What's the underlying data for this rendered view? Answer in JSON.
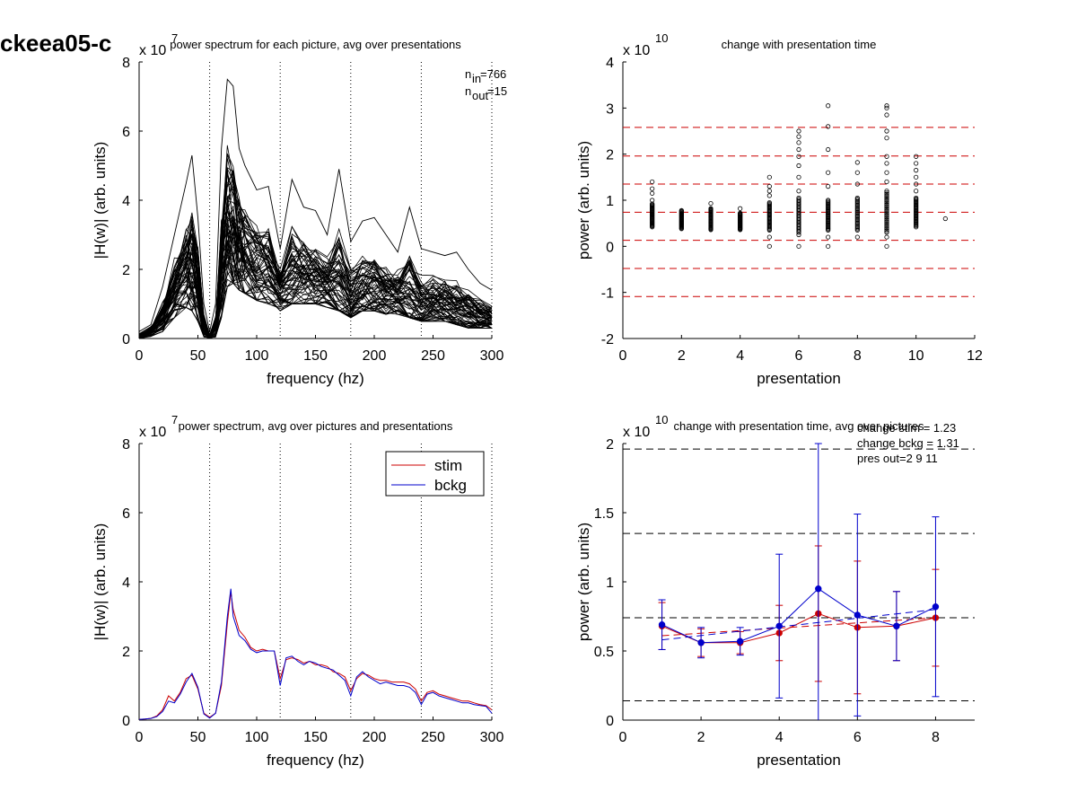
{
  "figure": {
    "title": "ckeea05-c"
  },
  "chart_data": [
    {
      "id": "p1",
      "type": "line",
      "title": "power spectrum for each picture, avg over presentations",
      "xlabel": "frequency (hz)",
      "ylabel": "|H(w)| (arb. units)",
      "y_exponent": "x 10",
      "y_exponent_power": "7",
      "xlim": [
        0,
        300
      ],
      "ylim": [
        0,
        8
      ],
      "xticks": [
        0,
        50,
        100,
        150,
        200,
        250,
        300
      ],
      "yticks": [
        0,
        2,
        4,
        6,
        8
      ],
      "vlines": [
        60,
        120,
        180,
        240,
        300
      ],
      "annotations": [
        {
          "base": "n",
          "sub": "in",
          "value": "=766"
        },
        {
          "base": "n",
          "sub": "out",
          "value": "=15"
        }
      ],
      "line_color": "#000000",
      "n_traces": 60,
      "envelope": {
        "x": [
          0,
          10,
          20,
          30,
          40,
          45,
          50,
          55,
          60,
          65,
          70,
          75,
          80,
          85,
          90,
          100,
          110,
          120,
          130,
          140,
          150,
          160,
          170,
          180,
          190,
          200,
          210,
          220,
          230,
          240,
          250,
          260,
          270,
          280,
          290,
          300
        ],
        "min": [
          0,
          0.05,
          0.2,
          0.6,
          0.9,
          0.8,
          0.5,
          0.05,
          0.02,
          0.05,
          0.6,
          1.5,
          1.6,
          1.4,
          1.3,
          1.1,
          1.0,
          0.8,
          1.0,
          1.0,
          1.0,
          0.9,
          0.8,
          0.6,
          0.8,
          0.8,
          0.7,
          0.7,
          0.6,
          0.5,
          0.5,
          0.5,
          0.4,
          0.3,
          0.3,
          0.3
        ],
        "mean": [
          0.05,
          0.2,
          0.6,
          1.3,
          1.8,
          1.9,
          1.4,
          0.3,
          0.05,
          0.3,
          1.8,
          3.0,
          2.8,
          2.5,
          2.3,
          2.0,
          1.9,
          1.4,
          1.7,
          1.7,
          1.6,
          1.5,
          1.5,
          1.1,
          1.3,
          1.3,
          1.2,
          1.2,
          1.1,
          0.9,
          1.0,
          0.9,
          0.8,
          0.7,
          0.6,
          0.5
        ],
        "max": [
          0.2,
          0.4,
          1.5,
          3.0,
          4.5,
          5.3,
          3.5,
          1.0,
          0.2,
          1.0,
          5.5,
          7.5,
          7.3,
          5.5,
          5.0,
          4.3,
          4.4,
          2.6,
          4.6,
          3.8,
          3.7,
          3.0,
          4.9,
          2.8,
          3.4,
          3.5,
          3.0,
          2.5,
          3.8,
          2.6,
          2.5,
          2.4,
          2.5,
          2.0,
          1.6,
          1.4
        ]
      }
    },
    {
      "id": "p2",
      "type": "scatter",
      "title": "change with presentation time",
      "xlabel": "presentation",
      "ylabel": "power (arb. units)",
      "y_exponent": "x 10",
      "y_exponent_power": "10",
      "xlim": [
        0,
        12
      ],
      "ylim": [
        -2,
        4
      ],
      "xticks": [
        0,
        2,
        4,
        6,
        8,
        10,
        12
      ],
      "yticks": [
        -2,
        -1,
        0,
        1,
        2,
        3,
        4
      ],
      "hlines": [
        2.58,
        1.96,
        1.35,
        0.74,
        0.13,
        -0.48,
        -1.09
      ],
      "hline_color": "#cc0000",
      "columns": [
        {
          "x": 1,
          "dense_range": [
            0.42,
            0.92
          ],
          "extra": [
            1.0,
            1.15,
            1.25,
            1.4
          ]
        },
        {
          "x": 2,
          "dense_range": [
            0.38,
            0.78
          ],
          "extra": []
        },
        {
          "x": 3,
          "dense_range": [
            0.36,
            0.82
          ],
          "extra": [
            0.93
          ]
        },
        {
          "x": 4,
          "dense_range": [
            0.36,
            0.72
          ],
          "extra": [
            0.82
          ]
        },
        {
          "x": 5,
          "dense_range": [
            0.35,
            0.95
          ],
          "extra": [
            0.0,
            0.2,
            1.1,
            1.2,
            1.3,
            1.5
          ]
        },
        {
          "x": 6,
          "dense_range": [
            0.3,
            1.05
          ],
          "extra": [
            0.0,
            0.25,
            1.2,
            1.5,
            1.75,
            1.95,
            2.1,
            2.25,
            2.38,
            2.5
          ]
        },
        {
          "x": 7,
          "dense_range": [
            0.35,
            1.0
          ],
          "extra": [
            0.0,
            0.2,
            1.3,
            1.6,
            2.1,
            2.6,
            3.05
          ]
        },
        {
          "x": 8,
          "dense_range": [
            0.35,
            1.05
          ],
          "extra": [
            0.2,
            1.35,
            1.6,
            1.82
          ]
        },
        {
          "x": 9,
          "dense_range": [
            0.3,
            1.2
          ],
          "extra": [
            0.0,
            0.2,
            1.4,
            1.6,
            1.8,
            1.95,
            2.35,
            2.5,
            2.85,
            3.0,
            3.05
          ]
        },
        {
          "x": 10,
          "dense_range": [
            0.42,
            1.05
          ],
          "extra": [
            1.2,
            1.35,
            1.5,
            1.65,
            1.8,
            1.95
          ]
        },
        {
          "x": 11,
          "dense_range": [
            0.6,
            0.6
          ],
          "extra": []
        }
      ]
    },
    {
      "id": "p3",
      "type": "line",
      "title": "power spectrum, avg over pictures and presentations",
      "xlabel": "frequency (hz)",
      "ylabel": "|H(w)| (arb. units)",
      "y_exponent": "x 10",
      "y_exponent_power": "7",
      "xlim": [
        0,
        300
      ],
      "ylim": [
        0,
        8
      ],
      "xticks": [
        0,
        50,
        100,
        150,
        200,
        250,
        300
      ],
      "yticks": [
        0,
        2,
        4,
        6,
        8
      ],
      "vlines": [
        60,
        120,
        180,
        240,
        300
      ],
      "legend": [
        {
          "label": "stim",
          "color": "#cc0000"
        },
        {
          "label": "bckg",
          "color": "#0000cc"
        }
      ],
      "x": [
        0,
        5,
        10,
        15,
        20,
        25,
        30,
        35,
        40,
        45,
        50,
        55,
        60,
        65,
        70,
        75,
        78,
        80,
        85,
        90,
        95,
        100,
        105,
        110,
        115,
        120,
        125,
        130,
        135,
        140,
        145,
        150,
        155,
        160,
        165,
        170,
        175,
        180,
        185,
        190,
        195,
        200,
        205,
        210,
        215,
        220,
        225,
        230,
        235,
        240,
        245,
        250,
        255,
        260,
        265,
        270,
        275,
        280,
        285,
        290,
        295,
        300
      ],
      "series": [
        {
          "name": "stim",
          "color": "#cc0000",
          "values": [
            0.02,
            0.03,
            0.05,
            0.12,
            0.3,
            0.7,
            0.55,
            0.8,
            1.2,
            1.3,
            0.9,
            0.2,
            0.08,
            0.2,
            1.0,
            2.8,
            3.7,
            3.2,
            2.6,
            2.4,
            2.1,
            2.0,
            2.05,
            2.0,
            2.0,
            1.2,
            1.75,
            1.8,
            1.75,
            1.65,
            1.7,
            1.6,
            1.6,
            1.55,
            1.4,
            1.35,
            1.25,
            0.85,
            1.2,
            1.35,
            1.3,
            1.2,
            1.15,
            1.15,
            1.1,
            1.1,
            1.1,
            1.05,
            0.9,
            0.55,
            0.8,
            0.85,
            0.75,
            0.7,
            0.65,
            0.6,
            0.55,
            0.55,
            0.5,
            0.45,
            0.42,
            0.3
          ]
        },
        {
          "name": "bckg",
          "color": "#0000cc",
          "values": [
            0.02,
            0.03,
            0.05,
            0.1,
            0.25,
            0.55,
            0.5,
            0.75,
            1.1,
            1.35,
            0.95,
            0.18,
            0.06,
            0.2,
            1.1,
            3.0,
            3.8,
            3.0,
            2.45,
            2.3,
            2.05,
            1.95,
            2.0,
            2.0,
            2.0,
            1.0,
            1.8,
            1.85,
            1.7,
            1.6,
            1.7,
            1.65,
            1.55,
            1.5,
            1.45,
            1.3,
            1.15,
            0.7,
            1.25,
            1.4,
            1.25,
            1.15,
            1.05,
            1.1,
            1.05,
            1.0,
            1.0,
            0.95,
            0.8,
            0.45,
            0.75,
            0.8,
            0.7,
            0.65,
            0.6,
            0.55,
            0.5,
            0.5,
            0.45,
            0.42,
            0.4,
            0.2
          ]
        }
      ]
    },
    {
      "id": "p4",
      "type": "line",
      "title": "change with presentation time, avg over pictures",
      "xlabel": "presentation",
      "ylabel": "power (arb. units)",
      "y_exponent": "x 10",
      "y_exponent_power": "10",
      "xlim": [
        0,
        9
      ],
      "ylim": [
        0,
        2
      ],
      "xticks": [
        0,
        2,
        4,
        6,
        8
      ],
      "yticks": [
        0,
        0.5,
        1,
        1.5,
        2
      ],
      "ytick_labels": [
        "0",
        "0.5",
        "1",
        "1.5",
        "2"
      ],
      "hlines": [
        1.96,
        1.35,
        0.74,
        0.14
      ],
      "hline_color": "#000000",
      "annotations": [
        "change stim = 1.23",
        "change bckg = 1.31",
        "pres out=2 9 11"
      ],
      "x": [
        1,
        2,
        3,
        4,
        5,
        6,
        7,
        8
      ],
      "series": [
        {
          "name": "stim",
          "color": "#cc0000",
          "values": [
            0.68,
            0.56,
            0.56,
            0.63,
            0.77,
            0.67,
            0.68,
            0.74
          ],
          "err": [
            0.17,
            0.1,
            0.08,
            0.2,
            0.49,
            0.48,
            0.25,
            0.35
          ],
          "trend": [
            0.61,
            0.74
          ]
        },
        {
          "name": "bckg",
          "color": "#0000cc",
          "values": [
            0.69,
            0.56,
            0.57,
            0.68,
            0.95,
            0.76,
            0.68,
            0.82
          ],
          "err": [
            0.18,
            0.11,
            0.1,
            0.52,
            1.05,
            0.73,
            0.25,
            0.65
          ],
          "trend": [
            0.58,
            0.8
          ]
        }
      ]
    }
  ]
}
